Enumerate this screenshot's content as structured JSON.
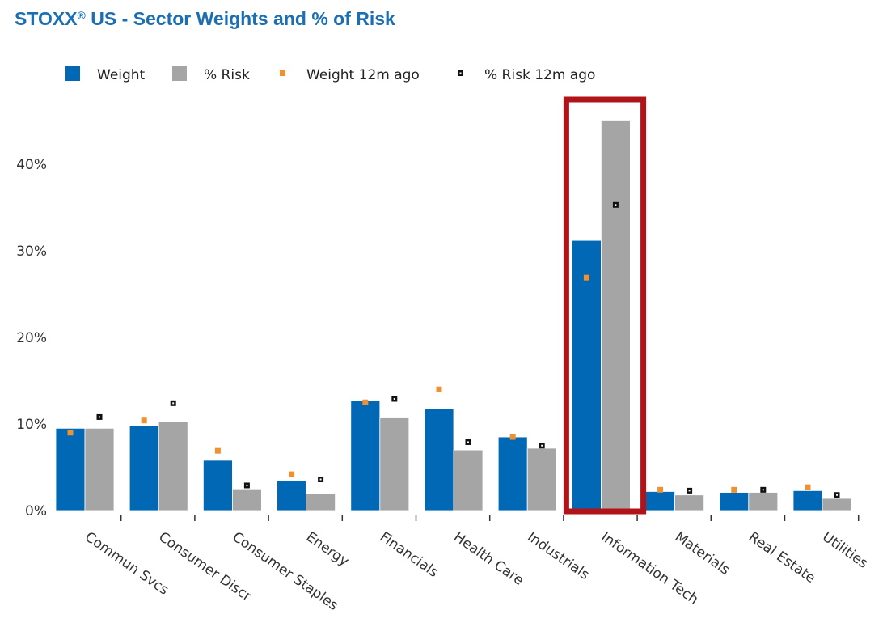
{
  "title": {
    "main": "STOXX",
    "reg": "®",
    "rest": " US - Sector Weights and % of Risk"
  },
  "colors": {
    "weight": "#0068b4",
    "risk": "#a5a5a5",
    "weight_12m": "#f09030",
    "risk_12m": "#111111",
    "highlight": "#b01419",
    "title": "#1a6fb4"
  },
  "chart_data": {
    "type": "bar",
    "categories": [
      "Commun Svcs",
      "Consumer Discr",
      "Consumer Staples",
      "Energy",
      "Financials",
      "Health Care",
      "Industrials",
      "Information Tech",
      "Materials",
      "Real Estate",
      "Utilities"
    ],
    "series": [
      {
        "name": "Weight",
        "kind": "bar",
        "color": "#0068b4",
        "values": [
          9.5,
          9.8,
          5.8,
          3.5,
          12.7,
          11.8,
          8.5,
          31.2,
          2.2,
          2.1,
          2.3
        ]
      },
      {
        "name": "% Risk",
        "kind": "bar",
        "color": "#a5a5a5",
        "values": [
          9.5,
          10.3,
          2.5,
          2.0,
          10.7,
          7.0,
          7.2,
          45.1,
          1.8,
          2.1,
          1.4
        ]
      },
      {
        "name": "Weight 12m ago",
        "kind": "marker",
        "color": "#f09030",
        "values": [
          9.0,
          10.4,
          6.9,
          4.2,
          12.5,
          14.0,
          8.5,
          26.9,
          2.4,
          2.4,
          2.7
        ]
      },
      {
        "name": "% Risk 12m ago",
        "kind": "marker",
        "color": "#111111",
        "values": [
          10.8,
          12.4,
          2.9,
          3.6,
          12.9,
          7.9,
          7.5,
          35.3,
          2.3,
          2.4,
          1.8
        ]
      }
    ],
    "y_ticks": [
      0,
      10,
      20,
      30,
      40
    ],
    "y_tick_labels": [
      "0%",
      "10%",
      "20%",
      "30%",
      "40%"
    ],
    "ylim": [
      0,
      45
    ],
    "legend_position": "top-left",
    "grid": false,
    "highlighted_category": "Information Tech"
  }
}
